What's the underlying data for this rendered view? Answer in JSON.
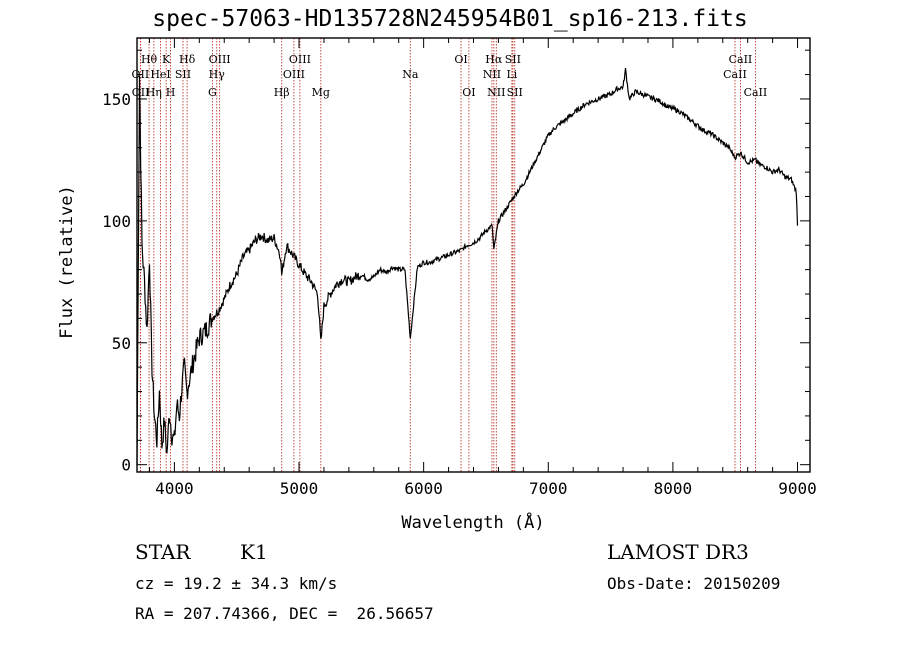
{
  "chart_data": {
    "type": "line",
    "title": "spec-57063-HD135728N245954B01_sp16-213.fits",
    "xlabel": "Wavelength (Å)",
    "ylabel": "Flux (relative)",
    "xlim": [
      3700,
      9100
    ],
    "ylim": [
      -3,
      175
    ],
    "xticks": [
      4000,
      5000,
      6000,
      7000,
      8000,
      9000
    ],
    "yticks": [
      0,
      50,
      100,
      150
    ],
    "series": [
      {
        "name": "flux",
        "x": [
          3700,
          3720,
          3740,
          3760,
          3780,
          3800,
          3820,
          3840,
          3860,
          3880,
          3900,
          3920,
          3940,
          3960,
          3980,
          4000,
          4020,
          4040,
          4060,
          4080,
          4100,
          4150,
          4200,
          4250,
          4300,
          4350,
          4400,
          4450,
          4500,
          4550,
          4600,
          4650,
          4700,
          4750,
          4800,
          4850,
          4861,
          4900,
          4950,
          5000,
          5050,
          5100,
          5150,
          5175,
          5200,
          5250,
          5300,
          5350,
          5400,
          5450,
          5500,
          5550,
          5600,
          5650,
          5700,
          5750,
          5800,
          5850,
          5893,
          5950,
          6000,
          6050,
          6100,
          6150,
          6200,
          6250,
          6300,
          6350,
          6400,
          6450,
          6500,
          6550,
          6563,
          6600,
          6650,
          6700,
          6750,
          6800,
          6850,
          6900,
          6950,
          7000,
          7050,
          7100,
          7150,
          7200,
          7250,
          7300,
          7350,
          7400,
          7450,
          7500,
          7550,
          7600,
          7620,
          7650,
          7700,
          7750,
          7800,
          7850,
          7900,
          7950,
          8000,
          8050,
          8100,
          8150,
          8200,
          8250,
          8300,
          8350,
          8400,
          8450,
          8498,
          8542,
          8600,
          8662,
          8700,
          8750,
          8800,
          8850,
          8900,
          8950,
          8990,
          9000
        ],
        "y": [
          0,
          160,
          90,
          75,
          55,
          85,
          40,
          20,
          10,
          30,
          8,
          18,
          4,
          22,
          12,
          10,
          25,
          20,
          32,
          40,
          30,
          42,
          52,
          55,
          60,
          63,
          68,
          74,
          78,
          85,
          88,
          92,
          94,
          92,
          93,
          86,
          78,
          90,
          86,
          82,
          78,
          75,
          70,
          50,
          65,
          70,
          74,
          76,
          75,
          77,
          78,
          76,
          77,
          80,
          79,
          81,
          80,
          80,
          52,
          81,
          83,
          83,
          84,
          85,
          86,
          87,
          88,
          90,
          91,
          93,
          96,
          98,
          88,
          100,
          104,
          108,
          112,
          115,
          120,
          125,
          130,
          135,
          138,
          140,
          142,
          144,
          146,
          148,
          149,
          150,
          151,
          152,
          154,
          155,
          162,
          150,
          153,
          152,
          151,
          150,
          149,
          147,
          146,
          145,
          143,
          141,
          139,
          137,
          136,
          134,
          132,
          130,
          126,
          128,
          124,
          125,
          123,
          122,
          120,
          121,
          118,
          117,
          112,
          98
        ]
      }
    ],
    "lines": [
      {
        "label": "Hθ",
        "x": 3797,
        "row": 1
      },
      {
        "label": "OII",
        "x": 3727,
        "row": 2
      },
      {
        "label": "OII",
        "x": 3729,
        "row": 3
      },
      {
        "label": "HeI",
        "x": 3889,
        "row": 2
      },
      {
        "label": "Hη",
        "x": 3835,
        "row": 3
      },
      {
        "label": "K",
        "x": 3934,
        "row": 1
      },
      {
        "label": "H",
        "x": 3969,
        "row": 3
      },
      {
        "label": "SII",
        "x": 4069,
        "row": 2
      },
      {
        "label": "Hδ",
        "x": 4102,
        "row": 1
      },
      {
        "label": "OIII",
        "x": 4363,
        "row": 1
      },
      {
        "label": "Hγ",
        "x": 4340,
        "row": 2
      },
      {
        "label": "G",
        "x": 4305,
        "row": 3
      },
      {
        "label": "Hβ",
        "x": 4861,
        "row": 3
      },
      {
        "label": "OIII",
        "x": 5007,
        "row": 1
      },
      {
        "label": "OIII",
        "x": 4959,
        "row": 2
      },
      {
        "label": "Mg",
        "x": 5175,
        "row": 3
      },
      {
        "label": "Na",
        "x": 5893,
        "row": 2
      },
      {
        "label": "OI",
        "x": 6300,
        "row": 1
      },
      {
        "label": "OI",
        "x": 6363,
        "row": 3
      },
      {
        "label": "Hα",
        "x": 6563,
        "row": 1
      },
      {
        "label": "NII",
        "x": 6548,
        "row": 2
      },
      {
        "label": "NII",
        "x": 6583,
        "row": 3
      },
      {
        "label": "SII",
        "x": 6716,
        "row": 1
      },
      {
        "label": "Li",
        "x": 6708,
        "row": 2
      },
      {
        "label": "SII",
        "x": 6731,
        "row": 3
      },
      {
        "label": "CaII",
        "x": 8542,
        "row": 1
      },
      {
        "label": "CaII",
        "x": 8498,
        "row": 2
      },
      {
        "label": "CaII",
        "x": 8662,
        "row": 3
      }
    ]
  },
  "info": {
    "object_type": "STAR",
    "subclass": "K1",
    "survey": "LAMOST DR3",
    "cz": "cz = 19.2 ± 34.3 km/s",
    "obs_date": "Obs-Date: 20150209",
    "coords": "RA = 207.74366, DEC =  26.56657"
  },
  "colors": {
    "line_marker": "#c0392b",
    "spectrum": "#000000"
  }
}
